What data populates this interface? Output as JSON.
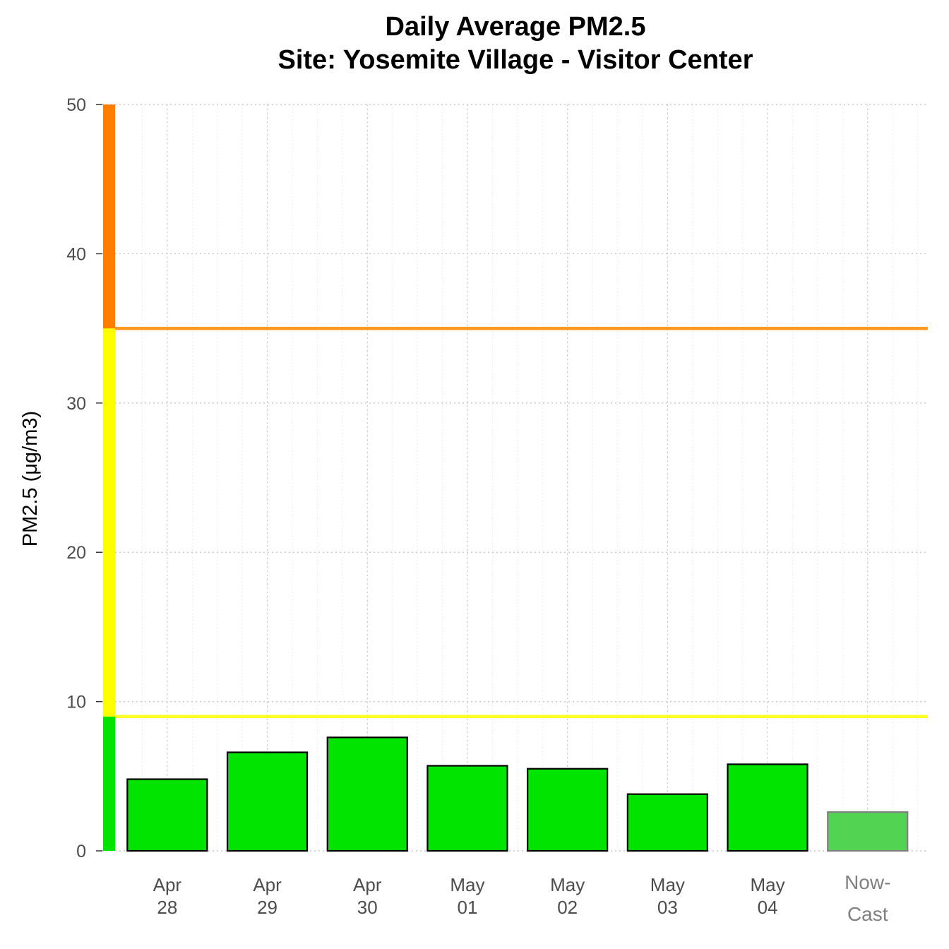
{
  "chart_data": {
    "type": "bar",
    "title": "Daily Average PM2.5",
    "subtitle": "Site: Yosemite Village - Visitor Center",
    "ylabel": "PM2.5 (μg/m3)",
    "xlabel": "",
    "ylim": [
      0,
      50
    ],
    "yticks": [
      0,
      10,
      20,
      30,
      40,
      50
    ],
    "grid": true,
    "categories": [
      {
        "line1": "Apr",
        "line2": "28"
      },
      {
        "line1": "Apr",
        "line2": "29"
      },
      {
        "line1": "Apr",
        "line2": "30"
      },
      {
        "line1": "May",
        "line2": "01"
      },
      {
        "line1": "May",
        "line2": "02"
      },
      {
        "line1": "May",
        "line2": "03"
      },
      {
        "line1": "May",
        "line2": "04"
      },
      {
        "line1": "Now-",
        "line2": "Cast"
      }
    ],
    "values": [
      4.8,
      6.6,
      7.6,
      5.7,
      5.5,
      3.8,
      5.8,
      2.6
    ],
    "bar_colors": [
      "#00e400",
      "#00e400",
      "#00e400",
      "#00e400",
      "#00e400",
      "#00e400",
      "#00e400",
      "#52d452"
    ],
    "bar_stroke_colors": [
      "#000000",
      "#000000",
      "#000000",
      "#000000",
      "#000000",
      "#000000",
      "#000000",
      "#808080"
    ],
    "thresholds": [
      {
        "value": 9,
        "color": "#ffff22"
      },
      {
        "value": 35,
        "color": "#ff9922"
      }
    ],
    "aqi_scale": [
      {
        "from": 0,
        "to": 9,
        "color": "#00e400"
      },
      {
        "from": 9,
        "to": 35,
        "color": "#ffff00"
      },
      {
        "from": 35,
        "to": 50,
        "color": "#ff7e00"
      }
    ]
  }
}
